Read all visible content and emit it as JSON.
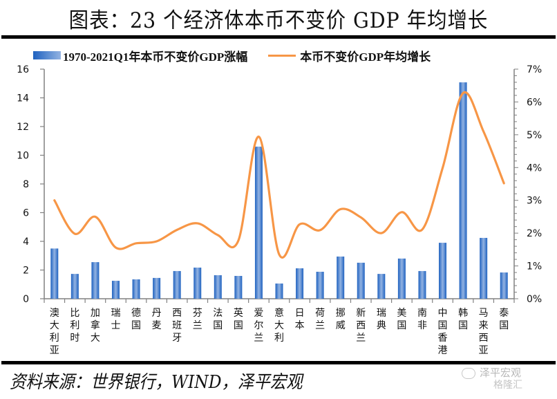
{
  "title": "图表：23 个经济体本币不变价 GDP 年均增长",
  "source": "资料来源：世界银行，WIND，泽平宏观",
  "watermark": {
    "line1": "泽平宏观",
    "line2": "格隆汇"
  },
  "colors": {
    "bar_dark": "#1f62c0",
    "bar_light": "#93b3e2",
    "line": "#f79646",
    "axis": "#808080"
  },
  "chart_data": {
    "type": "bar+line",
    "title": "图表：23 个经济体本币不变价 GDP 年均增长",
    "legend_position": "top",
    "categories": [
      "澳大利亚",
      "比利时",
      "加拿大",
      "瑞士",
      "德国",
      "丹麦",
      "西班牙",
      "芬兰",
      "法国",
      "英国",
      "爱尔兰",
      "意大利",
      "日本",
      "荷兰",
      "挪威",
      "新西兰",
      "瑞典",
      "美国",
      "南非",
      "中国香港",
      "韩国",
      "马来西亚",
      "泰国"
    ],
    "series": [
      {
        "name": "1970-2021Q1年本币不变价GDP涨幅",
        "type": "bar",
        "axis": "left",
        "values": [
          3.5,
          1.73,
          2.55,
          1.25,
          1.35,
          1.45,
          1.93,
          2.17,
          1.64,
          1.59,
          10.6,
          1.06,
          2.12,
          1.88,
          2.94,
          2.51,
          1.73,
          2.8,
          1.93,
          3.9,
          15.08,
          4.24,
          1.83
        ]
      },
      {
        "name": "本币不变价GDP年均增长",
        "type": "line",
        "axis": "right",
        "unit": "%",
        "values": [
          3.0,
          1.98,
          2.5,
          1.56,
          1.69,
          1.75,
          2.1,
          2.3,
          1.94,
          1.77,
          4.94,
          1.35,
          2.27,
          2.09,
          2.73,
          2.48,
          2.0,
          2.64,
          2.11,
          3.99,
          6.27,
          5.1,
          3.52
        ]
      }
    ],
    "y_left": {
      "ylim": [
        0,
        16
      ],
      "ticks": [
        "0",
        "2",
        "4",
        "6",
        "8",
        "10",
        "12",
        "14",
        "16"
      ]
    },
    "y_right": {
      "ylim": [
        0,
        7
      ],
      "ticks": [
        "0%",
        "1%",
        "2%",
        "3%",
        "4%",
        "5%",
        "6%",
        "7%"
      ]
    },
    "grid": false
  }
}
